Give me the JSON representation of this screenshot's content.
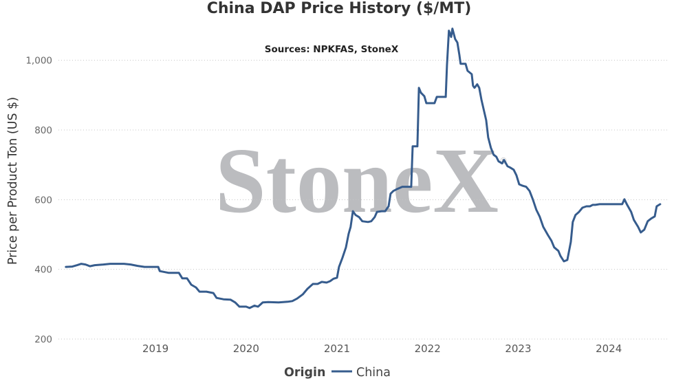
{
  "watermark": {
    "text": "StoneX",
    "mark": "®"
  },
  "colors": {
    "series": "#365c8d",
    "watermark": "#bbbcbf",
    "grid": "#c4c4c4"
  },
  "chart_data": {
    "type": "line",
    "title": "China DAP Price History ($/MT)",
    "subtitle": "Sources: NPKFAS, StoneX",
    "ylabel": "Price per Product Ton (US $)",
    "xlim": [
      "2017-12-06",
      "2024-08-23"
    ],
    "ylim": [
      200,
      1100
    ],
    "grid": true,
    "x_ticks": [
      {
        "value": "2019-01-01",
        "label": "2019"
      },
      {
        "value": "2020-01-01",
        "label": "2020"
      },
      {
        "value": "2021-01-01",
        "label": "2021"
      },
      {
        "value": "2022-01-01",
        "label": "2022"
      },
      {
        "value": "2023-01-01",
        "label": "2023"
      },
      {
        "value": "2024-01-01",
        "label": "2024"
      }
    ],
    "y_ticks": [
      {
        "value": 200,
        "label": "200"
      },
      {
        "value": 400,
        "label": "400"
      },
      {
        "value": 600,
        "label": "600"
      },
      {
        "value": 800,
        "label": "800"
      },
      {
        "value": 1000,
        "label": "1,000"
      }
    ],
    "legend": {
      "title": "Origin",
      "position": "bottom"
    },
    "series": [
      {
        "name": "China",
        "color": "#365c8d",
        "x": [
          "2018-01-05",
          "2018-01-31",
          "2018-02-19",
          "2018-03-08",
          "2018-03-25",
          "2018-04-12",
          "2018-05-01",
          "2018-06-05",
          "2018-07-02",
          "2018-08-27",
          "2018-09-23",
          "2018-10-21",
          "2018-11-18",
          "2019-01-12",
          "2019-01-18",
          "2019-02-22",
          "2019-04-05",
          "2019-04-19",
          "2019-05-08",
          "2019-05-25",
          "2019-06-13",
          "2019-06-27",
          "2019-07-25",
          "2019-08-22",
          "2019-09-04",
          "2019-10-02",
          "2019-10-30",
          "2019-11-18",
          "2019-12-05",
          "2020-01-01",
          "2020-01-15",
          "2020-02-04",
          "2020-02-18",
          "2020-03-08",
          "2020-03-30",
          "2020-05-11",
          "2020-06-16",
          "2020-07-05",
          "2020-07-24",
          "2020-08-16",
          "2020-09-04",
          "2020-09-26",
          "2020-10-15",
          "2020-11-01",
          "2020-11-20",
          "2020-12-04",
          "2020-12-18",
          "2021-01-01",
          "2021-01-09",
          "2021-01-23",
          "2021-02-06",
          "2021-02-17",
          "2021-02-25",
          "2021-03-06",
          "2021-03-17",
          "2021-03-31",
          "2021-04-13",
          "2021-05-06",
          "2021-05-19",
          "2021-06-02",
          "2021-06-11",
          "2021-06-30",
          "2021-07-14",
          "2021-07-28",
          "2021-08-05",
          "2021-08-16",
          "2021-09-02",
          "2021-09-21",
          "2021-10-27",
          "2021-11-02",
          "2021-11-21",
          "2021-11-27",
          "2021-12-05",
          "2021-12-19",
          "2021-12-27",
          "2022-01-29",
          "2022-02-07",
          "2022-03-15",
          "2022-03-20",
          "2022-03-28",
          "2022-04-06",
          "2022-04-11",
          "2022-04-22",
          "2022-05-01",
          "2022-05-09",
          "2022-05-14",
          "2022-06-03",
          "2022-06-11",
          "2022-06-28",
          "2022-07-03",
          "2022-07-09",
          "2022-07-20",
          "2022-07-28",
          "2022-08-06",
          "2022-08-14",
          "2022-08-25",
          "2022-09-02",
          "2022-09-13",
          "2022-09-24",
          "2022-10-05",
          "2022-10-14",
          "2022-10-28",
          "2022-11-05",
          "2022-11-19",
          "2022-11-30",
          "2022-12-14",
          "2022-12-25",
          "2023-01-05",
          "2023-01-19",
          "2023-02-02",
          "2023-02-16",
          "2023-03-01",
          "2023-03-15",
          "2023-03-29",
          "2023-04-12",
          "2023-05-01",
          "2023-05-15",
          "2023-05-26",
          "2023-06-12",
          "2023-06-20",
          "2023-07-04",
          "2023-07-18",
          "2023-08-01",
          "2023-08-09",
          "2023-08-20",
          "2023-09-03",
          "2023-09-17",
          "2023-10-03",
          "2023-10-17",
          "2023-10-28",
          "2023-11-08",
          "2023-11-25",
          "2024-02-24",
          "2024-03-04",
          "2024-03-15",
          "2024-03-31",
          "2024-04-11",
          "2024-04-28",
          "2024-05-09",
          "2024-05-23",
          "2024-06-06",
          "2024-06-20",
          "2024-07-04",
          "2024-07-12",
          "2024-07-26"
        ],
        "y": [
          407,
          408,
          412,
          416,
          414,
          409,
          412,
          414,
          416,
          416,
          414,
          410,
          407,
          407,
          395,
          390,
          390,
          374,
          374,
          356,
          348,
          336,
          336,
          332,
          318,
          314,
          313,
          305,
          293,
          293,
          289,
          296,
          293,
          305,
          306,
          305,
          307,
          309,
          316,
          328,
          344,
          358,
          358,
          364,
          362,
          366,
          373,
          376,
          407,
          433,
          463,
          502,
          522,
          567,
          556,
          550,
          538,
          536,
          538,
          550,
          565,
          567,
          567,
          581,
          617,
          625,
          631,
          637,
          637,
          753,
          753,
          921,
          907,
          897,
          877,
          877,
          895,
          895,
          986,
          1085,
          1067,
          1091,
          1061,
          1051,
          1016,
          990,
          990,
          970,
          960,
          927,
          921,
          931,
          921,
          887,
          862,
          828,
          779,
          749,
          729,
          723,
          710,
          704,
          714,
          696,
          692,
          686,
          670,
          644,
          640,
          637,
          625,
          601,
          571,
          551,
          522,
          498,
          482,
          463,
          453,
          439,
          423,
          427,
          479,
          536,
          556,
          565,
          577,
          581,
          581,
          585,
          585,
          587,
          587,
          601,
          585,
          565,
          542,
          522,
          506,
          514,
          538,
          546,
          552,
          581,
          587
        ]
      }
    ]
  }
}
